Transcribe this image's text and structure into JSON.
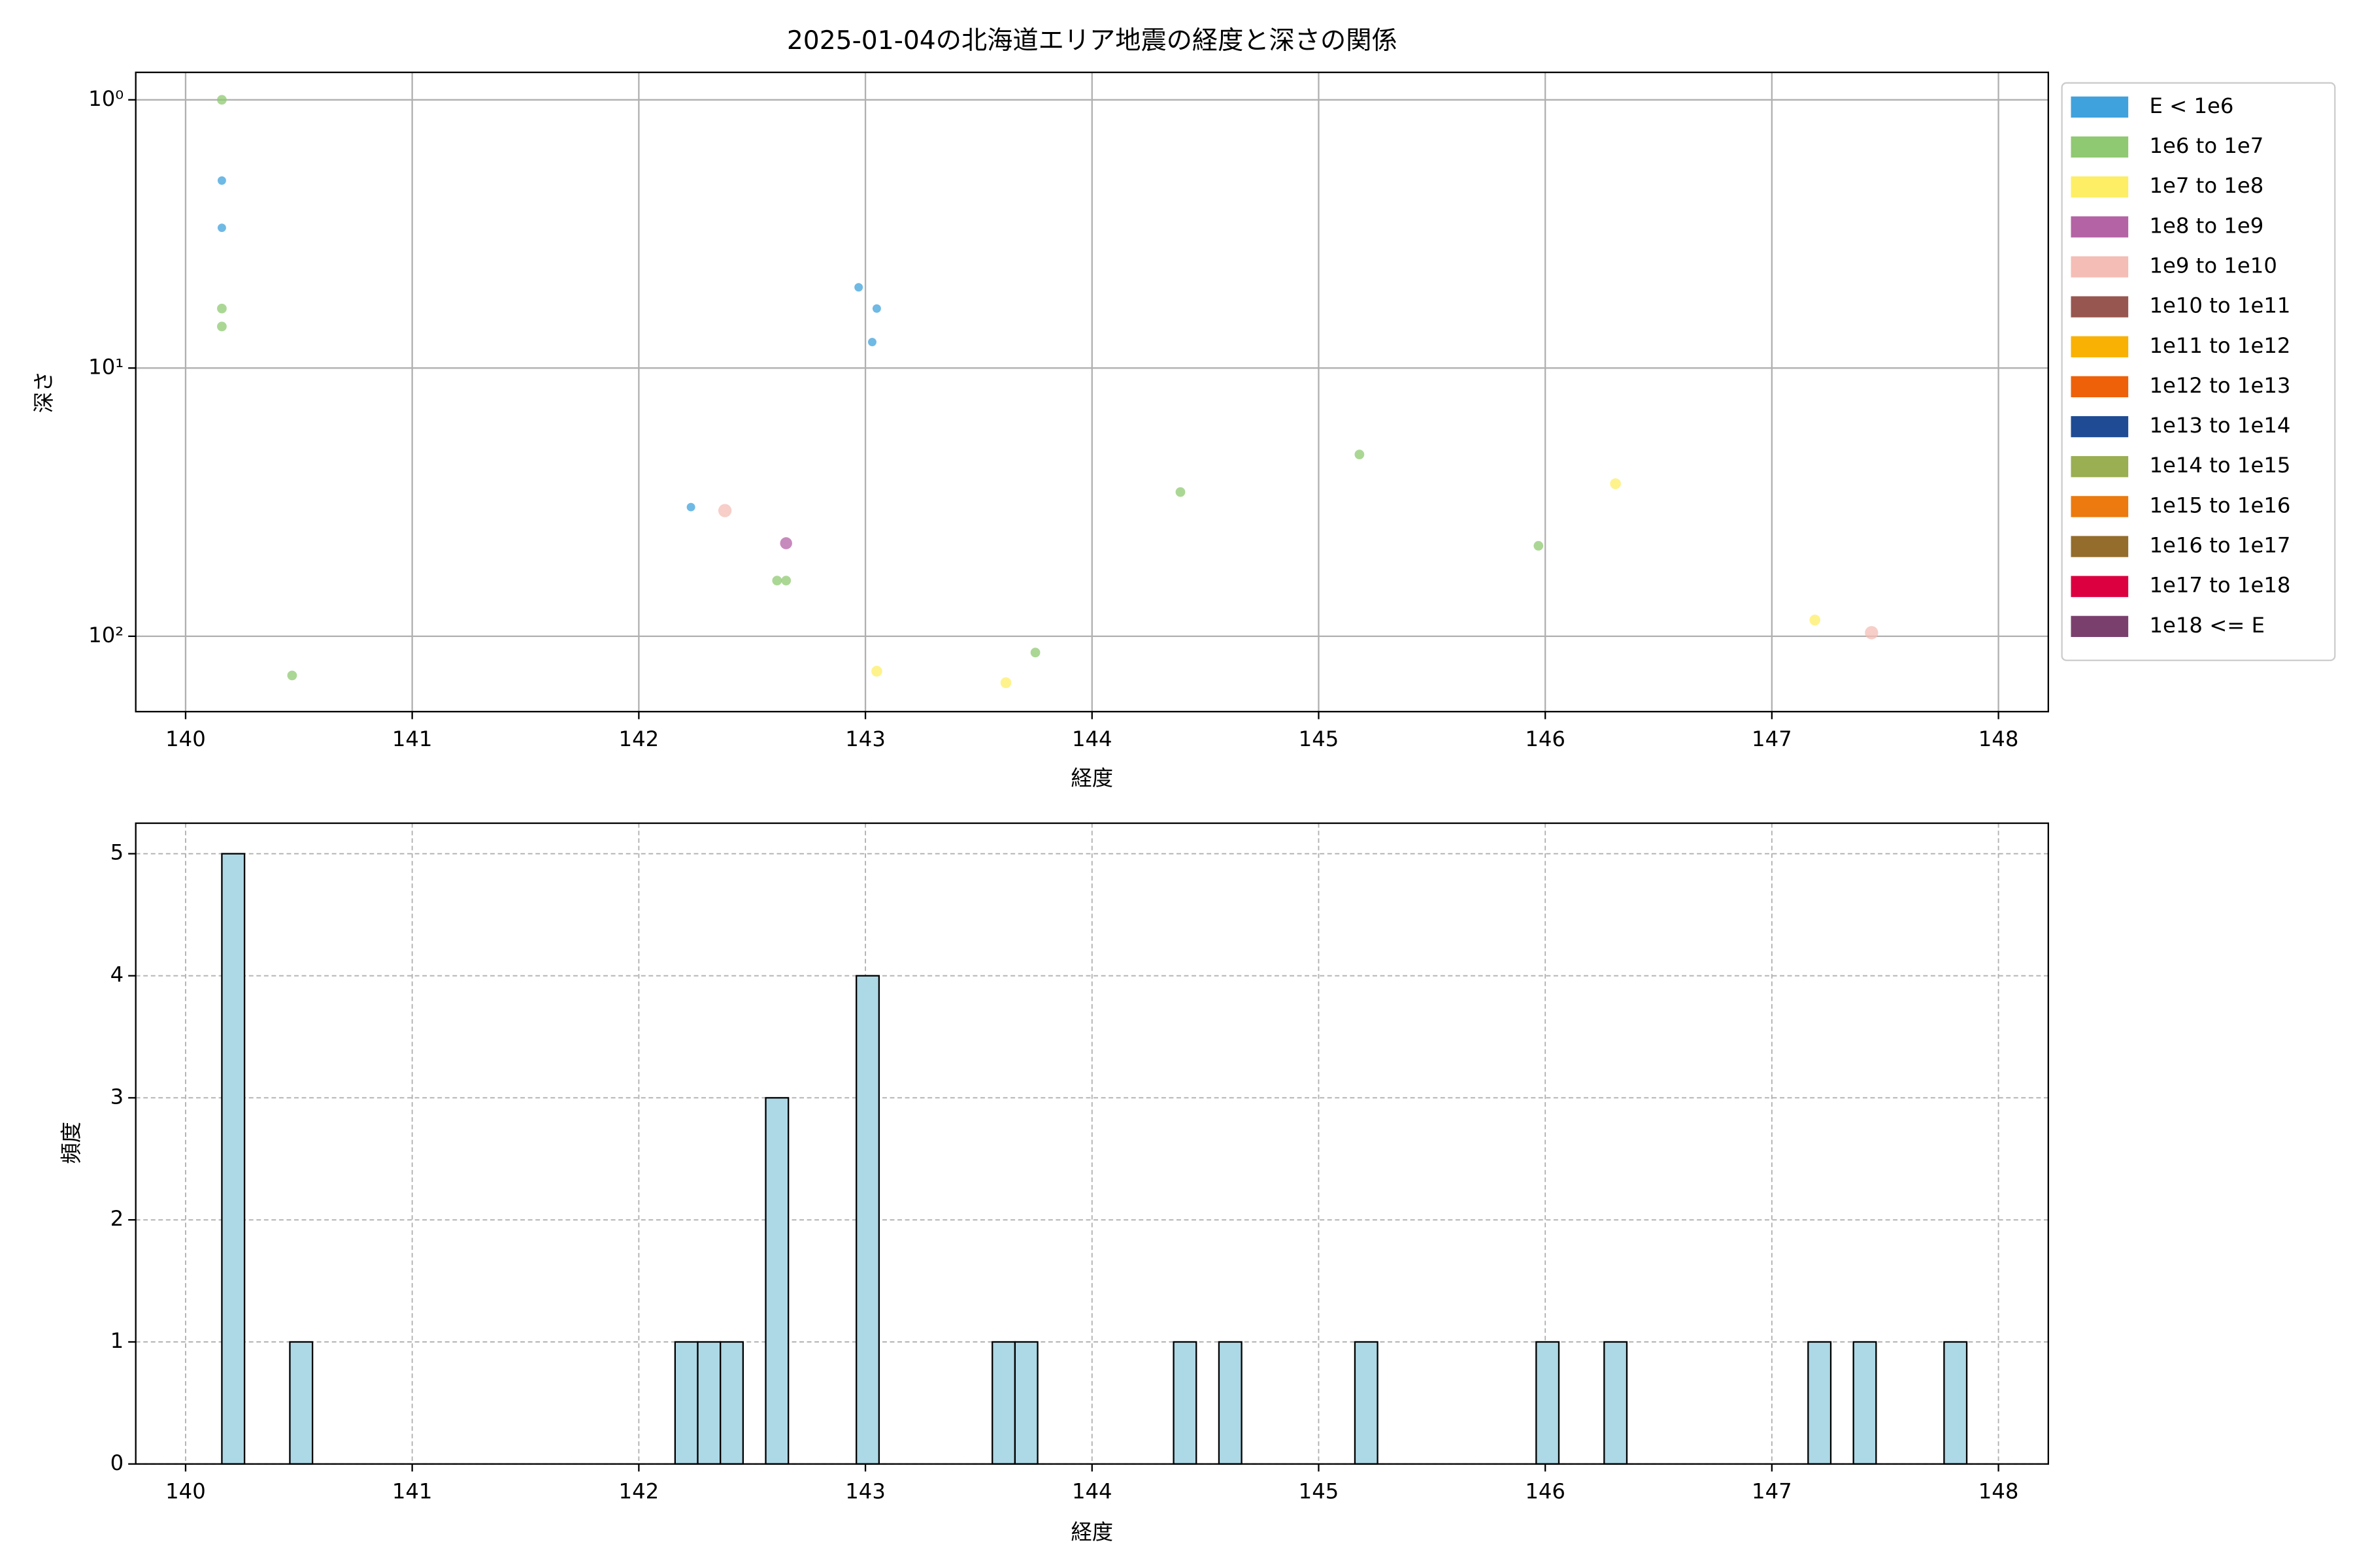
{
  "chart_data": [
    {
      "type": "scatter",
      "title": "2025-01-04の北海道エリア地震の経度と深さの関係",
      "x_label": "経度",
      "y_label": "深さ",
      "xlim": [
        139.78,
        148.22
      ],
      "xticks": [
        140,
        141,
        142,
        143,
        144,
        145,
        146,
        147,
        148
      ],
      "ylim": [
        0.79,
        191
      ],
      "y_scale": "log",
      "y_inverted": true,
      "yticks": [
        {
          "value": 1,
          "label": "10⁰"
        },
        {
          "value": 10,
          "label": "10¹"
        },
        {
          "value": 100,
          "label": "10²"
        }
      ],
      "grid": true,
      "legend": "outside-right",
      "series": [
        {
          "name": "E < 1e6",
          "color": "#3fa2dc",
          "x": [
            140.16,
            140.16,
            142.97,
            143.05,
            143.03,
            142.23
          ],
          "values": [
            2,
            3,
            5,
            6,
            8,
            33
          ]
        },
        {
          "name": "1e6 to 1e7",
          "color": "#8fc972",
          "x": [
            140.16,
            140.16,
            140.16,
            140.47,
            142.61,
            142.65,
            143.75,
            144.39,
            145.18,
            145.97
          ],
          "values": [
            1,
            6,
            7,
            140,
            62,
            62,
            115,
            29,
            21,
            46
          ]
        },
        {
          "name": "1e7 to 1e8",
          "color": "#fdee65",
          "x": [
            143.05,
            143.62,
            146.31,
            147.19
          ],
          "values": [
            135,
            149,
            27,
            87
          ]
        },
        {
          "name": "1e8 to 1e9",
          "color": "#b463a5",
          "x": [
            142.65
          ],
          "values": [
            45
          ]
        },
        {
          "name": "1e9 to 1e10",
          "color": "#f4bdb5",
          "x": [
            142.38,
            147.44
          ],
          "values": [
            34,
            97
          ]
        },
        {
          "name": "1e10 to 1e11",
          "color": "#985650",
          "x": [],
          "values": []
        },
        {
          "name": "1e11 to 1e12",
          "color": "#f9b103",
          "x": [],
          "values": []
        },
        {
          "name": "1e12 to 1e13",
          "color": "#ee6108",
          "x": [],
          "values": []
        },
        {
          "name": "1e13 to 1e14",
          "color": "#1e4b94",
          "x": [],
          "values": []
        },
        {
          "name": "1e14 to 1e15",
          "color": "#9aae52",
          "x": [],
          "values": []
        },
        {
          "name": "1e15 to 1e16",
          "color": "#ec7a0e",
          "x": [],
          "values": []
        },
        {
          "name": "1e16 to 1e17",
          "color": "#946d2c",
          "x": [],
          "values": []
        },
        {
          "name": "1e17 to 1e18",
          "color": "#dc0040",
          "x": [],
          "values": []
        },
        {
          "name": "1e18 <= E",
          "color": "#7b3f6e",
          "x": [],
          "values": []
        }
      ]
    },
    {
      "type": "histogram",
      "x_label": "経度",
      "y_label": "頻度",
      "color": "#add8e6",
      "edge_color": "#000000",
      "xlim": [
        139.78,
        148.22
      ],
      "xticks": [
        140,
        141,
        142,
        143,
        144,
        145,
        146,
        147,
        148
      ],
      "ylim": [
        0,
        5.25
      ],
      "yticks": [
        0,
        1,
        2,
        3,
        4,
        5
      ],
      "grid": true,
      "bins": [
        140.16,
        140.26,
        140.36,
        140.46,
        140.56,
        140.66,
        140.76,
        140.86,
        140.96,
        141.06,
        141.16,
        141.26,
        141.36,
        141.46,
        141.56,
        141.66,
        141.76,
        141.86,
        141.96,
        142.06,
        142.16,
        142.26,
        142.36,
        142.46,
        142.56,
        142.66,
        142.76,
        142.86,
        142.96,
        143.06,
        143.16,
        143.26,
        143.36,
        143.46,
        143.56,
        143.66,
        143.76,
        143.86,
        143.96,
        144.06,
        144.16,
        144.26,
        144.36,
        144.46,
        144.56,
        144.66,
        144.76,
        144.86,
        144.96,
        145.06,
        145.16,
        145.26,
        145.36,
        145.46,
        145.56,
        145.66,
        145.76,
        145.86,
        145.96,
        146.06,
        146.16,
        146.26,
        146.36,
        146.46,
        146.56,
        146.66,
        146.76,
        146.86,
        146.96,
        147.06,
        147.16,
        147.26,
        147.36,
        147.46,
        147.56,
        147.66,
        147.76,
        147.86
      ],
      "values": [
        5,
        0,
        0,
        1,
        0,
        0,
        0,
        0,
        0,
        0,
        0,
        0,
        0,
        0,
        0,
        0,
        0,
        0,
        0,
        0,
        1,
        1,
        1,
        0,
        3,
        0,
        0,
        0,
        4,
        0,
        0,
        0,
        0,
        0,
        1,
        1,
        0,
        0,
        0,
        0,
        0,
        0,
        1,
        0,
        1,
        0,
        0,
        0,
        0,
        0,
        1,
        0,
        0,
        0,
        0,
        0,
        0,
        0,
        1,
        0,
        0,
        1,
        0,
        0,
        0,
        0,
        0,
        0,
        0,
        0,
        1,
        0,
        1,
        0,
        0,
        0,
        1
      ]
    }
  ]
}
